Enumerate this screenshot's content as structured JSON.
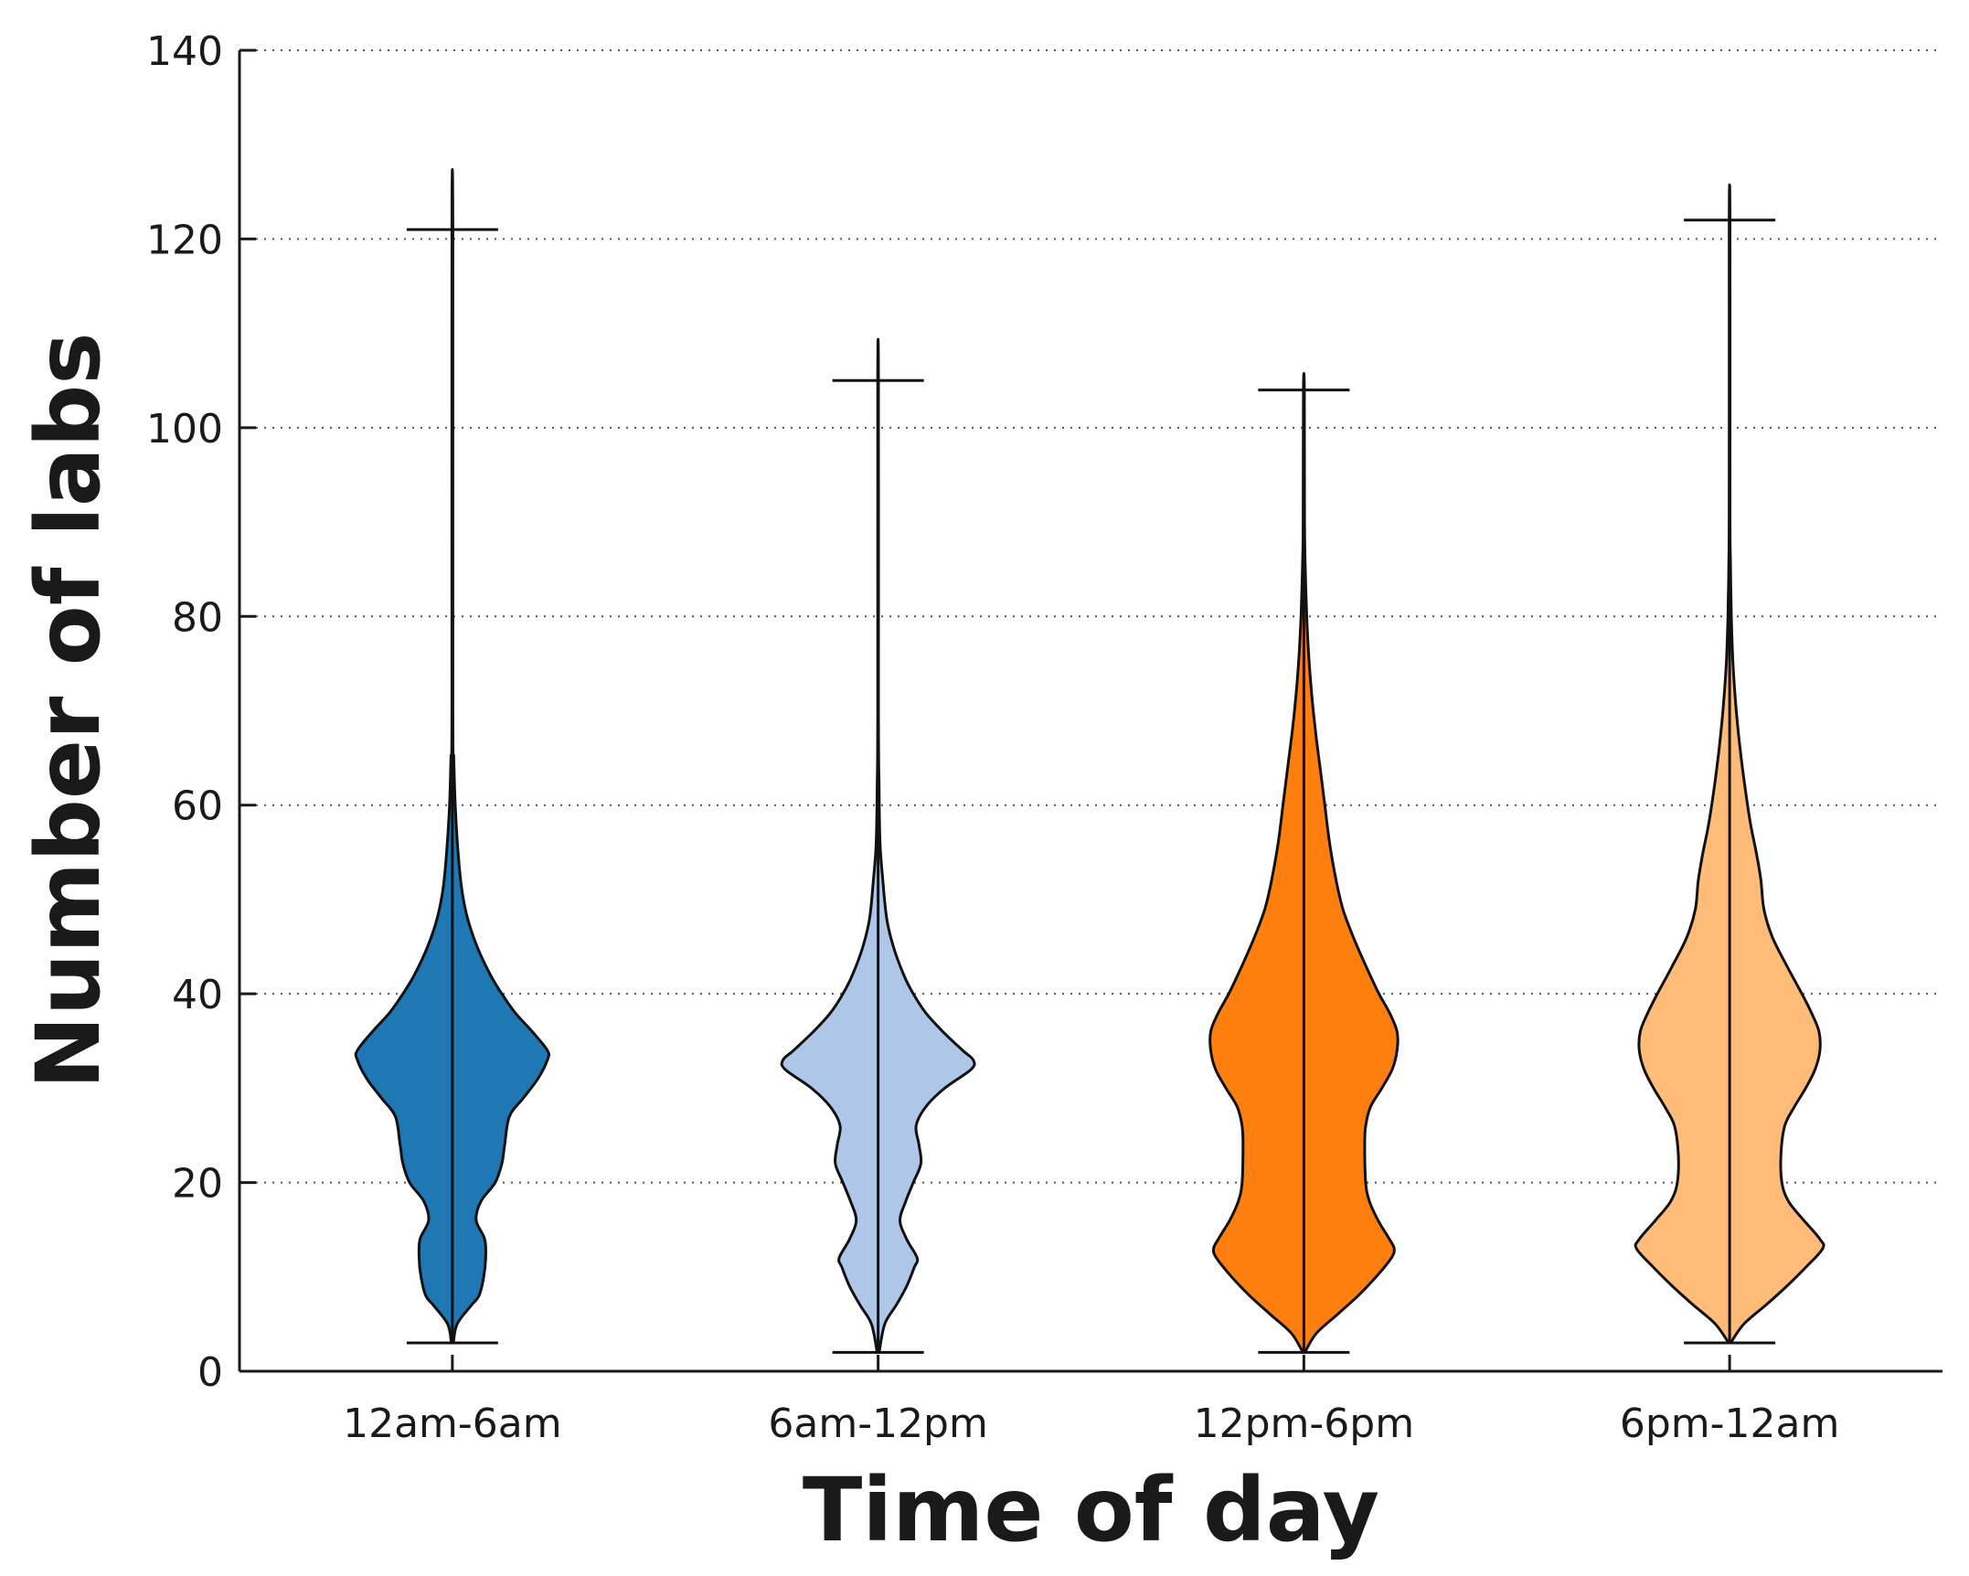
{
  "chart_data": {
    "type": "violin",
    "title": "",
    "xlabel": "Time of day",
    "ylabel": "Number of labs",
    "categories": [
      "12am-6am",
      "6am-12pm",
      "12pm-6pm",
      "6pm-12am"
    ],
    "ylim": [
      0,
      140
    ],
    "yticks": [
      0,
      20,
      40,
      60,
      80,
      100,
      120,
      140
    ],
    "grid": "horizontal-dotted",
    "series": [
      {
        "category": "12am-6am",
        "color": "#1f77b4",
        "min": 3,
        "max": 121,
        "density": [
          [
            3,
            0.01
          ],
          [
            5,
            0.05
          ],
          [
            7,
            0.2
          ],
          [
            8,
            0.28
          ],
          [
            10,
            0.33
          ],
          [
            12,
            0.35
          ],
          [
            14,
            0.34
          ],
          [
            16,
            0.25
          ],
          [
            18,
            0.3
          ],
          [
            20,
            0.45
          ],
          [
            22,
            0.52
          ],
          [
            24,
            0.55
          ],
          [
            27,
            0.6
          ],
          [
            29,
            0.75
          ],
          [
            31,
            0.9
          ],
          [
            33,
            1.0
          ],
          [
            34,
            1.0
          ],
          [
            36,
            0.84
          ],
          [
            38,
            0.66
          ],
          [
            40,
            0.52
          ],
          [
            42,
            0.4
          ],
          [
            45,
            0.26
          ],
          [
            48,
            0.16
          ],
          [
            51,
            0.1
          ],
          [
            55,
            0.06
          ],
          [
            60,
            0.03
          ],
          [
            65,
            0.015
          ],
          [
            70,
            0.005
          ],
          [
            121,
            0.005
          ]
        ]
      },
      {
        "category": "6am-12pm",
        "color": "#aec7e8",
        "min": 2,
        "max": 105,
        "density": [
          [
            2,
            0.01
          ],
          [
            5,
            0.07
          ],
          [
            7,
            0.19
          ],
          [
            9,
            0.3
          ],
          [
            11,
            0.38
          ],
          [
            12,
            0.41
          ],
          [
            14,
            0.3
          ],
          [
            16,
            0.23
          ],
          [
            18,
            0.29
          ],
          [
            20,
            0.37
          ],
          [
            22,
            0.45
          ],
          [
            24,
            0.43
          ],
          [
            26,
            0.4
          ],
          [
            28,
            0.5
          ],
          [
            30,
            0.7
          ],
          [
            32,
            0.98
          ],
          [
            33,
            1.0
          ],
          [
            34,
            0.89
          ],
          [
            36,
            0.68
          ],
          [
            38,
            0.5
          ],
          [
            40,
            0.37
          ],
          [
            42,
            0.27
          ],
          [
            45,
            0.16
          ],
          [
            48,
            0.09
          ],
          [
            52,
            0.05
          ],
          [
            56,
            0.02
          ],
          [
            62,
            0.01
          ],
          [
            70,
            0.004
          ],
          [
            105,
            0.004
          ]
        ]
      },
      {
        "category": "12pm-6pm",
        "color": "#ff7f0e",
        "min": 2,
        "max": 104,
        "density": [
          [
            2,
            0.01
          ],
          [
            4,
            0.13
          ],
          [
            6,
            0.35
          ],
          [
            8,
            0.57
          ],
          [
            10,
            0.76
          ],
          [
            12,
            0.92
          ],
          [
            13,
            0.95
          ],
          [
            14,
            0.9
          ],
          [
            16,
            0.78
          ],
          [
            18,
            0.69
          ],
          [
            20,
            0.65
          ],
          [
            24,
            0.64
          ],
          [
            26,
            0.65
          ],
          [
            28,
            0.7
          ],
          [
            30,
            0.82
          ],
          [
            32,
            0.93
          ],
          [
            34,
            0.98
          ],
          [
            36,
            0.98
          ],
          [
            38,
            0.9
          ],
          [
            40,
            0.79
          ],
          [
            43,
            0.65
          ],
          [
            46,
            0.52
          ],
          [
            49,
            0.41
          ],
          [
            52,
            0.34
          ],
          [
            56,
            0.27
          ],
          [
            60,
            0.22
          ],
          [
            64,
            0.17
          ],
          [
            68,
            0.12
          ],
          [
            72,
            0.08
          ],
          [
            76,
            0.05
          ],
          [
            80,
            0.03
          ],
          [
            85,
            0.015
          ],
          [
            90,
            0.007
          ],
          [
            104,
            0.005
          ]
        ]
      },
      {
        "category": "6pm-12am",
        "color": "#ffbb78",
        "min": 3,
        "max": 122,
        "density": [
          [
            3,
            0.01
          ],
          [
            5,
            0.15
          ],
          [
            7,
            0.38
          ],
          [
            9,
            0.6
          ],
          [
            11,
            0.8
          ],
          [
            13,
            0.98
          ],
          [
            14,
            0.95
          ],
          [
            16,
            0.78
          ],
          [
            18,
            0.62
          ],
          [
            20,
            0.55
          ],
          [
            23,
            0.54
          ],
          [
            26,
            0.58
          ],
          [
            28,
            0.68
          ],
          [
            30,
            0.8
          ],
          [
            32,
            0.9
          ],
          [
            34,
            0.95
          ],
          [
            36,
            0.94
          ],
          [
            38,
            0.86
          ],
          [
            40,
            0.76
          ],
          [
            43,
            0.6
          ],
          [
            46,
            0.45
          ],
          [
            49,
            0.36
          ],
          [
            52,
            0.33
          ],
          [
            55,
            0.28
          ],
          [
            58,
            0.22
          ],
          [
            62,
            0.16
          ],
          [
            66,
            0.11
          ],
          [
            70,
            0.07
          ],
          [
            75,
            0.035
          ],
          [
            80,
            0.018
          ],
          [
            86,
            0.008
          ],
          [
            92,
            0.004
          ],
          [
            122,
            0.004
          ]
        ]
      }
    ]
  }
}
